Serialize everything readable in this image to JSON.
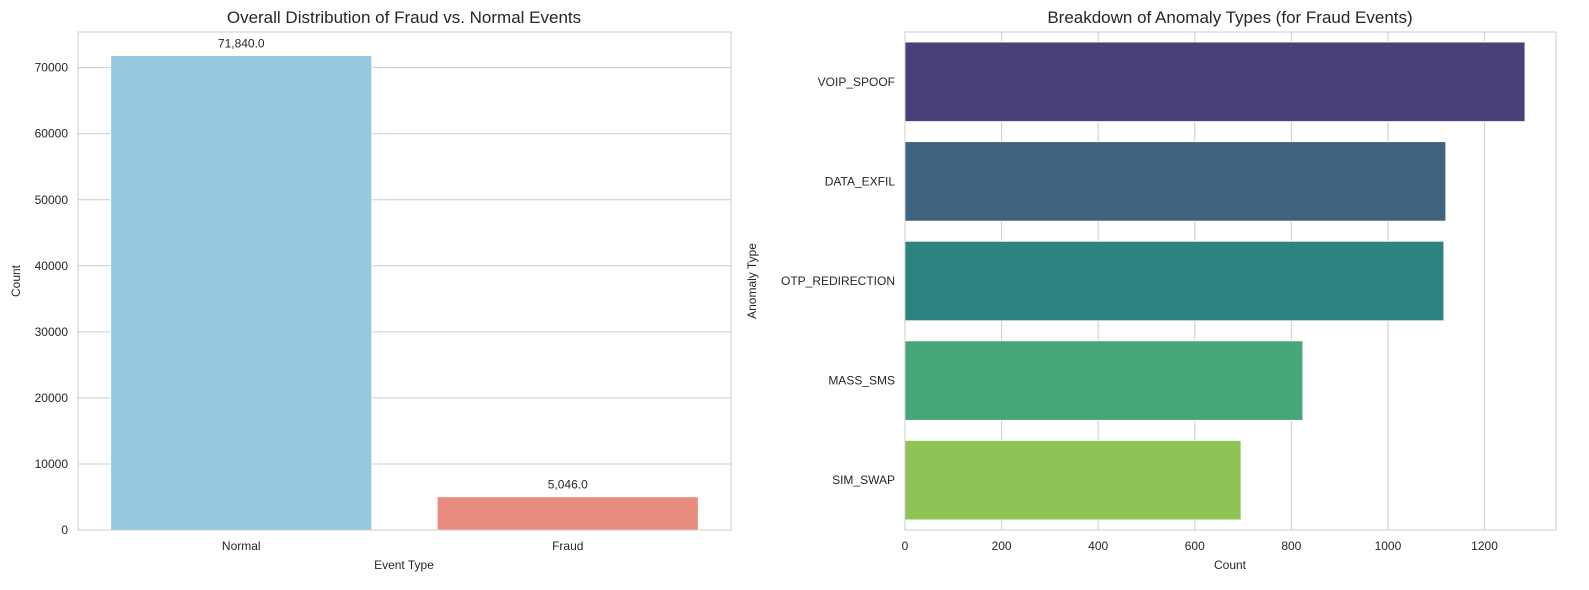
{
  "chart_data": [
    {
      "type": "bar",
      "title": "Overall Distribution of Fraud vs. Normal Events",
      "xlabel": "Event Type",
      "ylabel": "Count",
      "categories": [
        "Normal",
        "Fraud"
      ],
      "values": [
        71840,
        5046
      ],
      "data_labels": [
        "71,840.0",
        "5,046.0"
      ],
      "colors": [
        "#95c9e0",
        "#e98c80"
      ],
      "ylim": [
        0,
        75400
      ],
      "yticks": [
        0,
        10000,
        20000,
        30000,
        40000,
        50000,
        60000,
        70000
      ],
      "ytick_labels": [
        "0",
        "10000",
        "20000",
        "30000",
        "40000",
        "50000",
        "60000",
        "70000"
      ],
      "grid": true
    },
    {
      "type": "bar",
      "orientation": "horizontal",
      "title": "Breakdown of Anomaly Types (for Fraud Events)",
      "xlabel": "Count",
      "ylabel": "Anomaly Type",
      "categories": [
        "VOIP_SPOOF",
        "DATA_EXFIL",
        "OTP_REDIRECTION",
        "MASS_SMS",
        "SIM_SWAP"
      ],
      "values": [
        1284,
        1120,
        1116,
        824,
        696
      ],
      "colors": [
        "#4a4079",
        "#3e6381",
        "#2e8280",
        "#46a778",
        "#8dc455"
      ],
      "xlim": [
        0,
        1348
      ],
      "xticks": [
        0,
        200,
        400,
        600,
        800,
        1000,
        1200
      ],
      "xtick_labels": [
        "0",
        "200",
        "400",
        "600",
        "800",
        "1000",
        "1200"
      ],
      "grid": true
    }
  ]
}
